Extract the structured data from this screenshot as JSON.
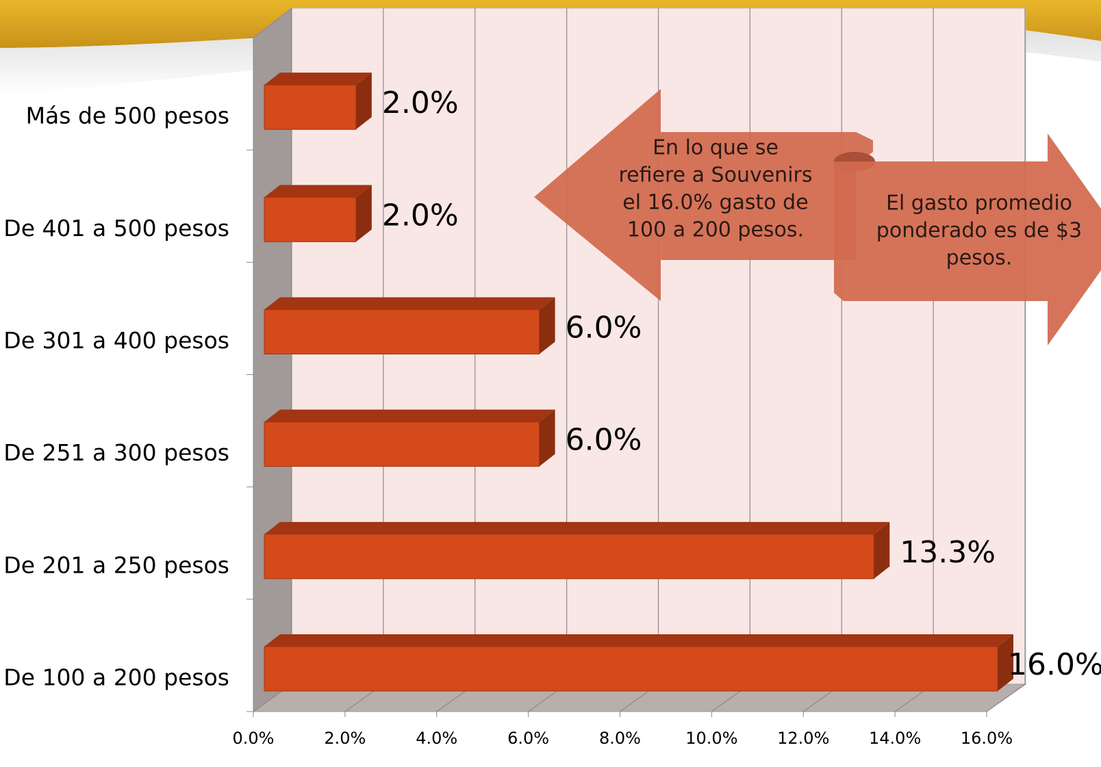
{
  "chart_data": {
    "type": "bar3d_horizontal",
    "categories": [
      "De 100 a 200 pesos",
      "De 201 a 250 pesos",
      "De 251 a 300 pesos",
      "De 301 a 400 pesos",
      "De 401 a 500 pesos",
      "Más de 500 pesos"
    ],
    "values": [
      16.0,
      13.3,
      6.0,
      6.0,
      2.0,
      2.0
    ],
    "value_labels": [
      "16.0%",
      "13.3%",
      "6.0%",
      "6.0%",
      "2.0%",
      "2.0%"
    ],
    "color": "#d44a1a",
    "xlim": [
      0,
      16
    ],
    "xticks": [
      {
        "value": 0,
        "label": "0.0%"
      },
      {
        "value": 2,
        "label": "2.0%"
      },
      {
        "value": 4,
        "label": "4.0%"
      },
      {
        "value": 6,
        "label": "6.0%"
      },
      {
        "value": 8,
        "label": "8.0%"
      },
      {
        "value": 10,
        "label": "10.0%"
      },
      {
        "value": 12,
        "label": "12.0%"
      },
      {
        "value": 14,
        "label": "14.0%"
      },
      {
        "value": 16,
        "label": "16.0%"
      }
    ],
    "grid": true,
    "annotations": [
      [
        "En lo que se",
        "refiere a Souvenirs",
        "el 16.0% gasto de",
        "100 a 200 pesos."
      ],
      [
        "El gasto promedio",
        "ponderado es de $3",
        "pesos."
      ]
    ]
  }
}
